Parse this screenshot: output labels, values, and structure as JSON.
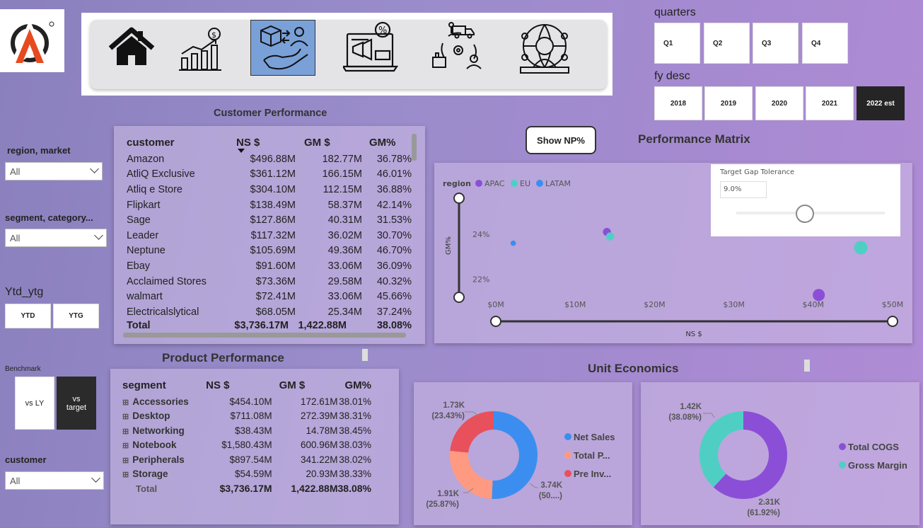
{
  "nav": {
    "items": [
      {
        "name": "home"
      },
      {
        "name": "sales"
      },
      {
        "name": "customer-product",
        "active": true
      },
      {
        "name": "marketing"
      },
      {
        "name": "supply-chain"
      },
      {
        "name": "executive"
      }
    ]
  },
  "filters": {
    "quarters_label": "quarters",
    "quarters": [
      "Q1",
      "Q2",
      "Q3",
      "Q4"
    ],
    "fy_label": "fy desc",
    "fy": [
      "2018",
      "2019",
      "2020",
      "2021",
      "2022 est"
    ],
    "fy_selected": "2022 est",
    "region_label": "region, market",
    "region_value": "All",
    "segment_label": "segment, category...",
    "segment_value": "All",
    "ytd_label": "Ytd_ytg",
    "ytd_buttons": [
      "YTD",
      "YTG"
    ],
    "benchmark_label": "Benchmark",
    "benchmark_buttons": [
      "vs LY",
      "vs target"
    ],
    "customer_label": "customer",
    "customer_value": "All"
  },
  "customer_performance": {
    "title": "Customer Performance",
    "columns": [
      "customer",
      "NS $",
      "GM $",
      "GM%"
    ],
    "rows": [
      [
        "Amazon",
        "$496.88M",
        "182.77M",
        "36.78%"
      ],
      [
        "AtliQ Exclusive",
        "$361.12M",
        "166.15M",
        "46.01%"
      ],
      [
        "Atliq e Store",
        "$304.10M",
        "112.15M",
        "36.88%"
      ],
      [
        "Flipkart",
        "$138.49M",
        "58.37M",
        "42.14%"
      ],
      [
        "Sage",
        "$127.86M",
        "40.31M",
        "31.53%"
      ],
      [
        "Leader",
        "$117.32M",
        "36.02M",
        "30.70%"
      ],
      [
        "Neptune",
        "$105.69M",
        "49.36M",
        "46.70%"
      ],
      [
        "Ebay",
        "$91.60M",
        "33.06M",
        "36.09%"
      ],
      [
        "Acclaimed Stores",
        "$73.36M",
        "29.58M",
        "40.32%"
      ],
      [
        "walmart",
        "$72.41M",
        "33.06M",
        "45.66%"
      ],
      [
        "Electricalslytical",
        "$68.05M",
        "25.34M",
        "37.24%"
      ]
    ],
    "total": [
      "Total",
      "$3,736.17M",
      "1,422.88M",
      "38.08%"
    ]
  },
  "product_performance": {
    "title": "Product Performance",
    "columns": [
      "segment",
      "NS $",
      "GM $",
      "GM%"
    ],
    "rows": [
      [
        "Accessories",
        "$454.10M",
        "172.61M",
        "38.01%"
      ],
      [
        "Desktop",
        "$711.08M",
        "272.39M",
        "38.31%"
      ],
      [
        "Networking",
        "$38.43M",
        "14.78M",
        "38.45%"
      ],
      [
        "Notebook",
        "$1,580.43M",
        "600.96M",
        "38.03%"
      ],
      [
        "Peripherals",
        "$897.54M",
        "341.22M",
        "38.02%"
      ],
      [
        "Storage",
        "$54.59M",
        "20.93M",
        "38.33%"
      ]
    ],
    "total": [
      "Total",
      "$3,736.17M",
      "1,422.88M",
      "38.08%"
    ]
  },
  "performance_matrix": {
    "title": "Performance Matrix",
    "show_np_label": "Show NP%",
    "tolerance_label": "Target Gap Tolerance",
    "tolerance_value": "9.0%",
    "tolerance_fraction": 0.6
  },
  "unit_economics": {
    "title": "Unit Economics"
  },
  "colors": {
    "apac": "#8a4fd6",
    "eu": "#4fcfc4",
    "latam": "#3b8ef0",
    "net_sales": "#3b8ef0",
    "total_p": "#ff9a82",
    "pre_inv": "#e8505b",
    "cogs": "#8a4fd6",
    "gross_margin": "#4fcfc4"
  },
  "chart_data": [
    {
      "type": "scatter",
      "legend_title": "region",
      "legend": [
        "APAC",
        "EU",
        "LATAM"
      ],
      "xlabel": "NS $",
      "ylabel": "GM%",
      "x_ticks": [
        "$0M",
        "$10M",
        "$20M",
        "$30M",
        "$40M",
        "$50M"
      ],
      "y_ticks": [
        "22%",
        "24%"
      ],
      "xlim": [
        0,
        50
      ],
      "ylim": [
        21.2,
        25.6
      ],
      "points": [
        {
          "region": "APAC",
          "x": 14.0,
          "y": 24.1,
          "size": 6
        },
        {
          "region": "EU",
          "x": 14.4,
          "y": 23.9,
          "size": 6
        },
        {
          "region": "LATAM",
          "x": 2.2,
          "y": 23.6,
          "size": 4
        },
        {
          "region": "EU",
          "x": 46.0,
          "y": 23.4,
          "size": 10
        },
        {
          "region": "APAC",
          "x": 40.7,
          "y": 21.3,
          "size": 9
        }
      ]
    },
    {
      "type": "pie",
      "labels": [
        "Net Sales",
        "Total P...",
        "Pre Inv..."
      ],
      "values": [
        3.74,
        1.91,
        1.73
      ],
      "value_labels": [
        "3.74K",
        "1.91K",
        "1.73K"
      ],
      "pct_labels": [
        "(50....)",
        "(25.87%)",
        "(23.43%)"
      ]
    },
    {
      "type": "pie",
      "labels": [
        "Total COGS",
        "Gross Margin"
      ],
      "values": [
        2.31,
        1.42
      ],
      "value_labels": [
        "2.31K",
        "1.42K"
      ],
      "pct_labels": [
        "(61.92%)",
        "(38.08%)"
      ]
    }
  ]
}
